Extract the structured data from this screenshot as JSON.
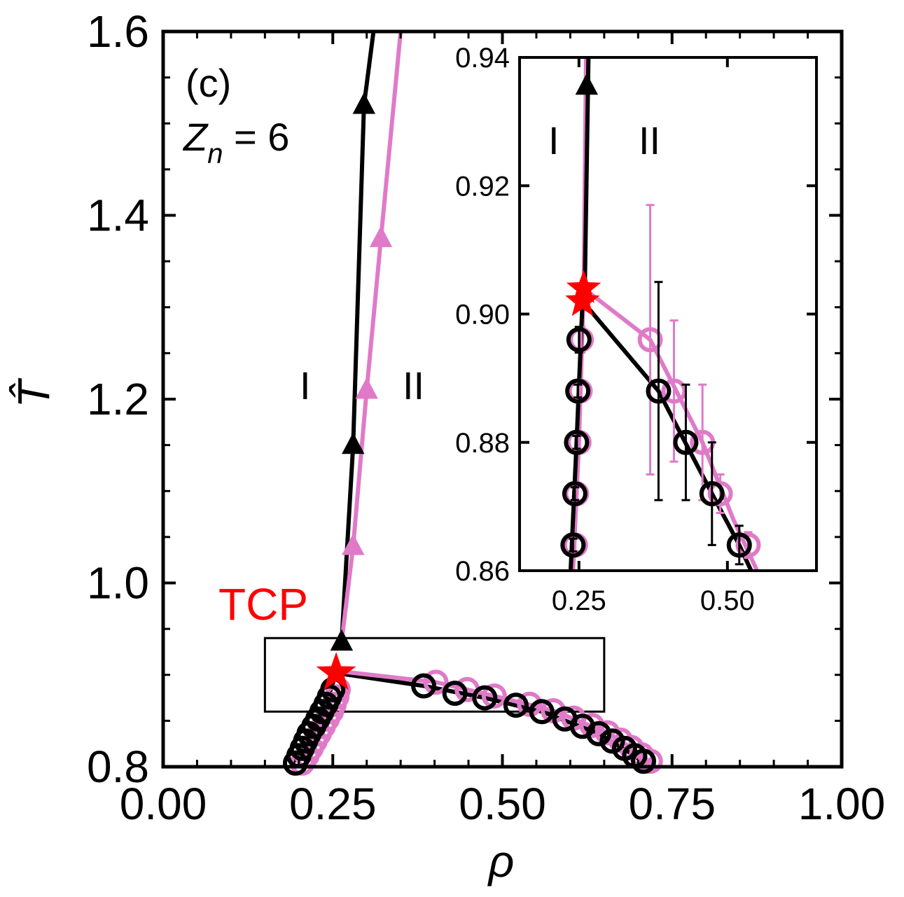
{
  "chart_data": [
    {
      "type": "line",
      "panel_label": "(c)",
      "zn_label": {
        "symbol": "Z",
        "subscript": "n",
        "rest": " = 6"
      },
      "xlabel": "ρ",
      "ylabel": "T̂",
      "xlim": [
        0.0,
        1.0
      ],
      "ylim": [
        0.8,
        1.6
      ],
      "xticks": [
        "0.00",
        "0.25",
        "0.50",
        "0.75",
        "1.00"
      ],
      "yticks": [
        "0.8",
        "1.0",
        "1.2",
        "1.4",
        "1.6"
      ],
      "region_labels": [
        "I",
        "II"
      ],
      "tcp_label": "TCP",
      "tcp_point": {
        "x": 0.255,
        "y": 0.902
      },
      "zoom_box": {
        "x": [
          0.15,
          0.65
        ],
        "y": [
          0.86,
          0.94
        ]
      },
      "colors": {
        "black": "#000000",
        "pink": "#e07ac8",
        "tcp": "#ff0000"
      },
      "series": [
        {
          "name": "boundary-triangles-black",
          "color": "#000000",
          "marker": "triangle",
          "points": [
            {
              "x": 0.263,
              "y": 0.936
            },
            {
              "x": 0.28,
              "y": 1.15
            },
            {
              "x": 0.296,
              "y": 1.52
            }
          ],
          "line": [
            [
              0.263,
              0.936
            ],
            [
              0.28,
              1.15
            ],
            [
              0.296,
              1.52
            ],
            [
              0.31,
              1.6
            ]
          ]
        },
        {
          "name": "boundary-triangles-pink",
          "color": "#e07ac8",
          "marker": "triangle",
          "points": [
            {
              "x": 0.263,
              "y": 0.936
            },
            {
              "x": 0.28,
              "y": 1.04
            },
            {
              "x": 0.3,
              "y": 1.21
            },
            {
              "x": 0.321,
              "y": 1.375
            }
          ],
          "line": [
            [
              0.263,
              0.936
            ],
            [
              0.28,
              1.04
            ],
            [
              0.3,
              1.21
            ],
            [
              0.321,
              1.375
            ],
            [
              0.35,
              1.6
            ]
          ]
        },
        {
          "name": "coexistence-black-circles",
          "color": "#000000",
          "marker": "circle",
          "points": [
            {
              "x": 0.195,
              "y": 0.804
            },
            {
              "x": 0.2,
              "y": 0.812
            },
            {
              "x": 0.205,
              "y": 0.82
            },
            {
              "x": 0.21,
              "y": 0.828
            },
            {
              "x": 0.215,
              "y": 0.836
            },
            {
              "x": 0.222,
              "y": 0.844
            },
            {
              "x": 0.228,
              "y": 0.852
            },
            {
              "x": 0.234,
              "y": 0.86
            },
            {
              "x": 0.24,
              "y": 0.868
            },
            {
              "x": 0.245,
              "y": 0.876
            },
            {
              "x": 0.25,
              "y": 0.884
            },
            {
              "x": 0.384,
              "y": 0.888
            },
            {
              "x": 0.43,
              "y": 0.88
            },
            {
              "x": 0.474,
              "y": 0.875
            },
            {
              "x": 0.52,
              "y": 0.867
            },
            {
              "x": 0.558,
              "y": 0.86
            },
            {
              "x": 0.592,
              "y": 0.852
            },
            {
              "x": 0.618,
              "y": 0.844
            },
            {
              "x": 0.642,
              "y": 0.836
            },
            {
              "x": 0.662,
              "y": 0.828
            },
            {
              "x": 0.68,
              "y": 0.82
            },
            {
              "x": 0.695,
              "y": 0.812
            },
            {
              "x": 0.708,
              "y": 0.806
            }
          ]
        },
        {
          "name": "coexistence-pink-circles",
          "color": "#e07ac8",
          "marker": "circle",
          "points": [
            {
              "x": 0.205,
              "y": 0.804
            },
            {
              "x": 0.212,
              "y": 0.812
            },
            {
              "x": 0.218,
              "y": 0.82
            },
            {
              "x": 0.224,
              "y": 0.828
            },
            {
              "x": 0.23,
              "y": 0.836
            },
            {
              "x": 0.236,
              "y": 0.844
            },
            {
              "x": 0.242,
              "y": 0.852
            },
            {
              "x": 0.248,
              "y": 0.86
            },
            {
              "x": 0.252,
              "y": 0.868
            },
            {
              "x": 0.256,
              "y": 0.876
            },
            {
              "x": 0.258,
              "y": 0.884
            },
            {
              "x": 0.402,
              "y": 0.892
            },
            {
              "x": 0.448,
              "y": 0.884
            },
            {
              "x": 0.488,
              "y": 0.877
            },
            {
              "x": 0.54,
              "y": 0.868
            },
            {
              "x": 0.575,
              "y": 0.861
            },
            {
              "x": 0.605,
              "y": 0.853
            },
            {
              "x": 0.632,
              "y": 0.845
            },
            {
              "x": 0.655,
              "y": 0.837
            },
            {
              "x": 0.674,
              "y": 0.829
            },
            {
              "x": 0.69,
              "y": 0.821
            },
            {
              "x": 0.705,
              "y": 0.813
            },
            {
              "x": 0.718,
              "y": 0.806
            }
          ]
        }
      ],
      "curves": [
        {
          "color": "#000000",
          "points": [
            [
              0.255,
              0.902
            ],
            [
              0.384,
              0.888
            ],
            [
              0.474,
              0.875
            ],
            [
              0.558,
              0.86
            ],
            [
              0.642,
              0.836
            ],
            [
              0.695,
              0.812
            ],
            [
              0.715,
              0.8
            ]
          ]
        },
        {
          "color": "#e07ac8",
          "points": [
            [
              0.258,
              0.904
            ],
            [
              0.402,
              0.892
            ],
            [
              0.488,
              0.877
            ],
            [
              0.575,
              0.861
            ],
            [
              0.655,
              0.837
            ],
            [
              0.705,
              0.813
            ],
            [
              0.725,
              0.8
            ]
          ]
        },
        {
          "color": "#000000",
          "points": [
            [
              0.188,
              0.8
            ],
            [
              0.215,
              0.836
            ],
            [
              0.24,
              0.868
            ],
            [
              0.255,
              0.902
            ]
          ]
        }
      ]
    },
    {
      "type": "line",
      "role": "inset",
      "xlim": [
        0.15,
        0.65
      ],
      "ylim": [
        0.86,
        0.94
      ],
      "xticks": [
        "0.25",
        "0.50"
      ],
      "yticks": [
        "0.86",
        "0.88",
        "0.90",
        "0.92",
        "0.94"
      ],
      "region_labels": [
        "I",
        "II"
      ],
      "tcp_points": [
        {
          "x": 0.258,
          "y": 0.904
        },
        {
          "x": 0.256,
          "y": 0.902
        }
      ],
      "series": [
        {
          "name": "inset-black-circles",
          "color": "#000000",
          "marker": "circle",
          "points": [
            {
              "x": 0.24,
              "y": 0.864,
              "err": 0.001
            },
            {
              "x": 0.243,
              "y": 0.872,
              "err": 0.001
            },
            {
              "x": 0.246,
              "y": 0.88,
              "err": 0.001
            },
            {
              "x": 0.248,
              "y": 0.888,
              "err": 0.001
            },
            {
              "x": 0.25,
              "y": 0.896,
              "err": 0.002
            },
            {
              "x": 0.384,
              "y": 0.888,
              "err": 0.017
            },
            {
              "x": 0.43,
              "y": 0.88,
              "err": 0.009
            },
            {
              "x": 0.474,
              "y": 0.872,
              "err": 0.008
            },
            {
              "x": 0.52,
              "y": 0.864,
              "err": 0.003
            }
          ]
        },
        {
          "name": "inset-pink-circles",
          "color": "#e07ac8",
          "marker": "circle",
          "points": [
            {
              "x": 0.244,
              "y": 0.864,
              "err": 0.001
            },
            {
              "x": 0.246,
              "y": 0.872,
              "err": 0.001
            },
            {
              "x": 0.25,
              "y": 0.88,
              "err": 0.001
            },
            {
              "x": 0.252,
              "y": 0.888,
              "err": 0.001
            },
            {
              "x": 0.254,
              "y": 0.896,
              "err": 0.002
            },
            {
              "x": 0.37,
              "y": 0.896,
              "err": 0.021
            },
            {
              "x": 0.41,
              "y": 0.888,
              "err": 0.011
            },
            {
              "x": 0.458,
              "y": 0.88,
              "err": 0.009
            },
            {
              "x": 0.488,
              "y": 0.872,
              "err": 0.003
            },
            {
              "x": 0.535,
              "y": 0.864,
              "err": 0.002
            }
          ]
        },
        {
          "name": "inset-triangles",
          "color": "#000000",
          "marker": "triangle",
          "points": [
            {
              "x": 0.263,
              "y": 0.936
            }
          ]
        }
      ],
      "curves": [
        {
          "color": "#e07ac8",
          "points": [
            [
              0.262,
              0.94
            ],
            [
              0.258,
              0.904
            ],
            [
              0.37,
              0.896
            ],
            [
              0.458,
              0.88
            ],
            [
              0.51,
              0.868
            ],
            [
              0.55,
              0.86
            ]
          ]
        },
        {
          "color": "#000000",
          "points": [
            [
              0.266,
              0.94
            ],
            [
              0.26,
              0.905
            ],
            [
              0.256,
              0.902
            ],
            [
              0.384,
              0.888
            ],
            [
              0.474,
              0.872
            ],
            [
              0.52,
              0.864
            ],
            [
              0.54,
              0.86
            ]
          ]
        },
        {
          "color": "#e07ac8",
          "points": [
            [
              0.24,
              0.86
            ],
            [
              0.25,
              0.88
            ],
            [
              0.258,
              0.904
            ]
          ]
        },
        {
          "color": "#000000",
          "points": [
            [
              0.236,
              0.86
            ],
            [
              0.246,
              0.88
            ],
            [
              0.256,
              0.902
            ]
          ]
        }
      ]
    }
  ]
}
